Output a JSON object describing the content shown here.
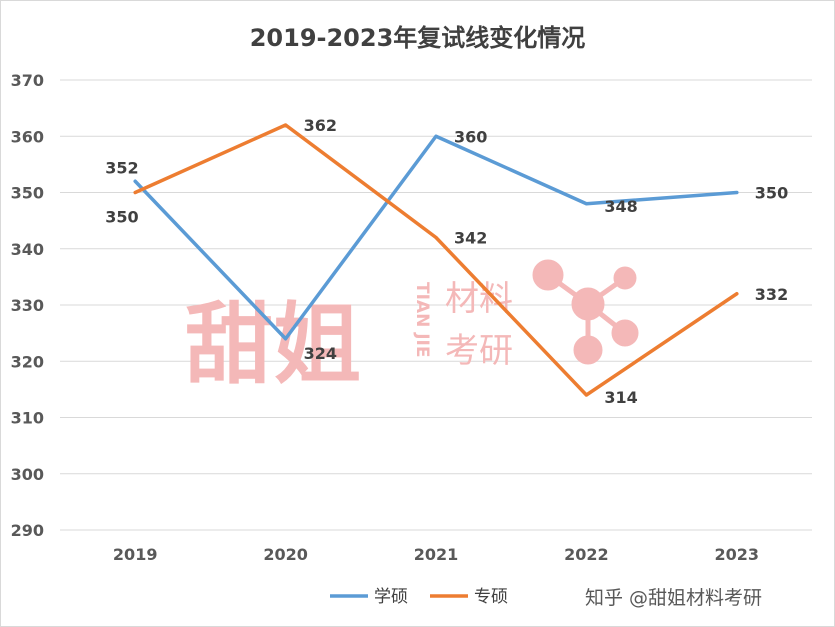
{
  "chart_data": {
    "type": "line",
    "title": "2019-2023年复试线变化情况",
    "categories": [
      "2019",
      "2020",
      "2021",
      "2022",
      "2023"
    ],
    "series": [
      {
        "name": "学硕",
        "values": [
          352,
          324,
          360,
          348,
          350
        ],
        "color": "#5b9bd5"
      },
      {
        "name": "专硕",
        "values": [
          350,
          362,
          342,
          314,
          332
        ],
        "color": "#ed7d31"
      }
    ],
    "y_ticks": [
      "290",
      "300",
      "310",
      "320",
      "330",
      "340",
      "350",
      "360",
      "370"
    ],
    "ylim": [
      290,
      370
    ],
    "grid": true,
    "legend": "bottom"
  },
  "watermark": {
    "brand": "甜姐",
    "pinyin": "TIAN JIE",
    "line1": "材料",
    "line2": "考研"
  },
  "credit": "知乎 @甜姐材料考研"
}
